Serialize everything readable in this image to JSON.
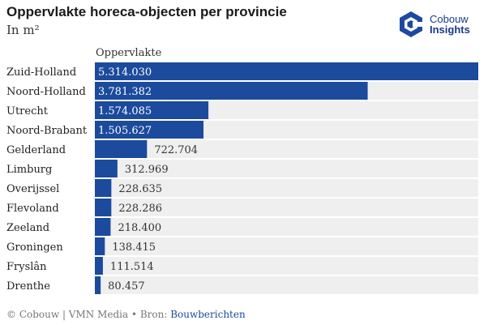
{
  "title": "Oppervlakte horeca-objecten per provincie",
  "subtitle": "In m²",
  "logo": {
    "line1": "Cobouw",
    "line2": "Insights",
    "icon": "cobouw-logo-icon"
  },
  "footer": {
    "copyright": "© Cobouw | VMN Media • Bron: ",
    "source_link": "Bouwberichten"
  },
  "colors": {
    "bar": "#1c4a9c",
    "track": "#efefef",
    "label_inside": "#ffffff",
    "label_outside": "#333333"
  },
  "chart_data": {
    "type": "bar",
    "orientation": "horizontal",
    "column_header": "Oppervlakte",
    "categories": [
      "Zuid-Holland",
      "Noord-Holland",
      "Utrecht",
      "Noord-Brabant",
      "Gelderland",
      "Limburg",
      "Overijssel",
      "Flevoland",
      "Zeeland",
      "Groningen",
      "Fryslân",
      "Drenthe"
    ],
    "values": [
      5314030,
      3781382,
      1574085,
      1505627,
      722704,
      312969,
      228635,
      228286,
      218400,
      138415,
      111514,
      80457
    ],
    "value_labels": [
      "5.314.030",
      "3.781.382",
      "1.574.085",
      "1.505.627",
      "722.704",
      "312.969",
      "228.635",
      "228.286",
      "218.400",
      "138.415",
      "111.514",
      "80.457"
    ],
    "xlim": [
      0,
      5314030
    ],
    "grid": false,
    "legend": "none"
  }
}
